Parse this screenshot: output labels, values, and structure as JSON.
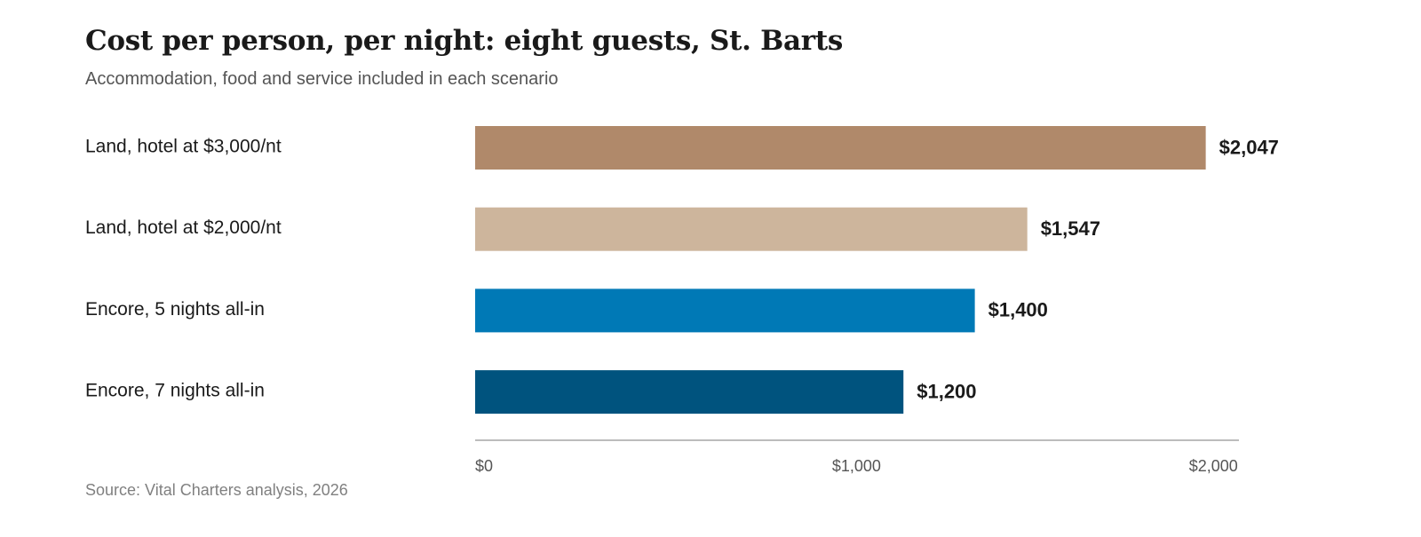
{
  "chart_data": {
    "type": "bar",
    "orientation": "horizontal",
    "title": "Cost per person, per night: eight guests, St. Barts",
    "subtitle": "Accommodation, food and service included in each scenario",
    "source": "Source: Vital Charters analysis, 2026",
    "categories": [
      "Land, hotel at $3,000/nt",
      "Land, hotel at $2,000/nt",
      "Encore, 5 nights all-in",
      "Encore, 7 nights all-in"
    ],
    "values": [
      2047,
      1547,
      1400,
      1200
    ],
    "value_labels": [
      "$2,047",
      "$1,547",
      "$1,400",
      "$1,200"
    ],
    "colors": [
      "#b0896a",
      "#cdb59c",
      "#0079b6",
      "#00537e"
    ],
    "xlim": [
      0,
      2140
    ],
    "ticks": [
      {
        "value": 0,
        "label": "$0"
      },
      {
        "value": 1000,
        "label": "$1,000"
      },
      {
        "value": 2000,
        "label": "$2,000"
      }
    ],
    "grid": false,
    "legend": "none"
  }
}
